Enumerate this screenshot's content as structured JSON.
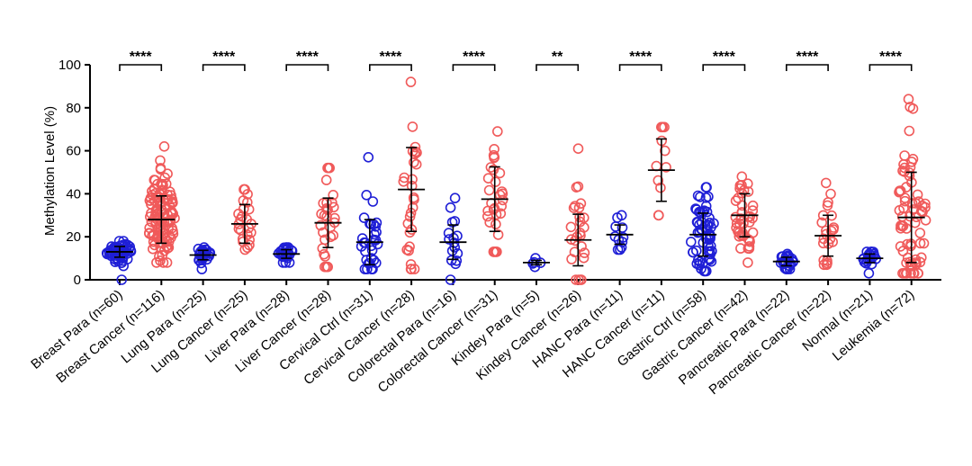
{
  "chart_data": {
    "type": "scatter",
    "subtype": "dot-plot with mean and SD",
    "title": "",
    "xlabel": "",
    "ylabel": "Methylation Level (%)",
    "ylim": [
      0,
      100
    ],
    "yticks": [
      0,
      20,
      40,
      60,
      80,
      100
    ],
    "grid": false,
    "legend": "none",
    "colors": {
      "para": "#1f1fd6",
      "cancer": "#f05a5a",
      "errorbar": "#000000"
    },
    "categories": [
      {
        "label": "Breast Para (n=60)",
        "group": "para",
        "mean": 13,
        "sd": 2.5,
        "min": 0,
        "max": 18
      },
      {
        "label": "Breast Cancer (n=116)",
        "group": "cancer",
        "mean": 28,
        "sd": 11,
        "min": 8,
        "max": 62
      },
      {
        "label": "Lung Para (n=25)",
        "group": "para",
        "mean": 11.5,
        "sd": 2.2,
        "min": 5,
        "max": 15
      },
      {
        "label": "Lung Cancer (n=25)",
        "group": "cancer",
        "mean": 26,
        "sd": 9,
        "min": 14,
        "max": 42
      },
      {
        "label": "Liver Para (n=28)",
        "group": "para",
        "mean": 12,
        "sd": 2,
        "min": 8,
        "max": 15
      },
      {
        "label": "Liver Cancer (n=28)",
        "group": "cancer",
        "mean": 26.5,
        "sd": 11.5,
        "min": 6,
        "max": 52
      },
      {
        "label": "Cervical Ctrl (n=31)",
        "group": "para",
        "mean": 17.5,
        "sd": 10.5,
        "min": 5,
        "max": 57
      },
      {
        "label": "Cervical Cancer (n=28)",
        "group": "cancer",
        "mean": 42,
        "sd": 19.5,
        "min": 5,
        "max": 92
      },
      {
        "label": "Colorectal Para (n=16)",
        "group": "para",
        "mean": 17.5,
        "sd": 8,
        "min": 0,
        "max": 38
      },
      {
        "label": "Colorectal Cancer (n=31)",
        "group": "cancer",
        "mean": 37.5,
        "sd": 15,
        "min": 13,
        "max": 69
      },
      {
        "label": "Kindey Para (n=5)",
        "group": "para",
        "mean": 8,
        "sd": 1,
        "min": 6,
        "max": 10
      },
      {
        "label": "Kindey Cancer (n=26)",
        "group": "cancer",
        "mean": 18.5,
        "sd": 12,
        "min": 0,
        "max": 61
      },
      {
        "label": "HANC Para (n=11)",
        "group": "para",
        "mean": 21,
        "sd": 4.5,
        "min": 14,
        "max": 30
      },
      {
        "label": "HANC Cancer (n=11)",
        "group": "cancer",
        "mean": 51,
        "sd": 14.5,
        "min": 30,
        "max": 71
      },
      {
        "label": "Gastric Ctrl (n=58)",
        "group": "para",
        "mean": 21,
        "sd": 10,
        "min": 4,
        "max": 43
      },
      {
        "label": "Gastric Cancer (n=42)",
        "group": "cancer",
        "mean": 30,
        "sd": 10,
        "min": 8,
        "max": 48
      },
      {
        "label": "Pancreatic Para (n=22)",
        "group": "para",
        "mean": 8.5,
        "sd": 2,
        "min": 5,
        "max": 12
      },
      {
        "label": "Pancreatic Cancer (n=22)",
        "group": "cancer",
        "mean": 20.5,
        "sd": 9.5,
        "min": 7,
        "max": 45
      },
      {
        "label": "Normal (n=21)",
        "group": "para",
        "mean": 10,
        "sd": 2,
        "min": 3,
        "max": 13
      },
      {
        "label": "Leukemia (n=72)",
        "group": "cancer",
        "mean": 29,
        "sd": 21,
        "min": 3,
        "max": 84
      }
    ],
    "comparisons": [
      {
        "pair": [
          0,
          1
        ],
        "label": "****"
      },
      {
        "pair": [
          2,
          3
        ],
        "label": "****"
      },
      {
        "pair": [
          4,
          5
        ],
        "label": "****"
      },
      {
        "pair": [
          6,
          7
        ],
        "label": "****"
      },
      {
        "pair": [
          8,
          9
        ],
        "label": "****"
      },
      {
        "pair": [
          10,
          11
        ],
        "label": "**"
      },
      {
        "pair": [
          12,
          13
        ],
        "label": "****"
      },
      {
        "pair": [
          14,
          15
        ],
        "label": "****"
      },
      {
        "pair": [
          16,
          17
        ],
        "label": "****"
      },
      {
        "pair": [
          18,
          19
        ],
        "label": "****"
      }
    ]
  }
}
